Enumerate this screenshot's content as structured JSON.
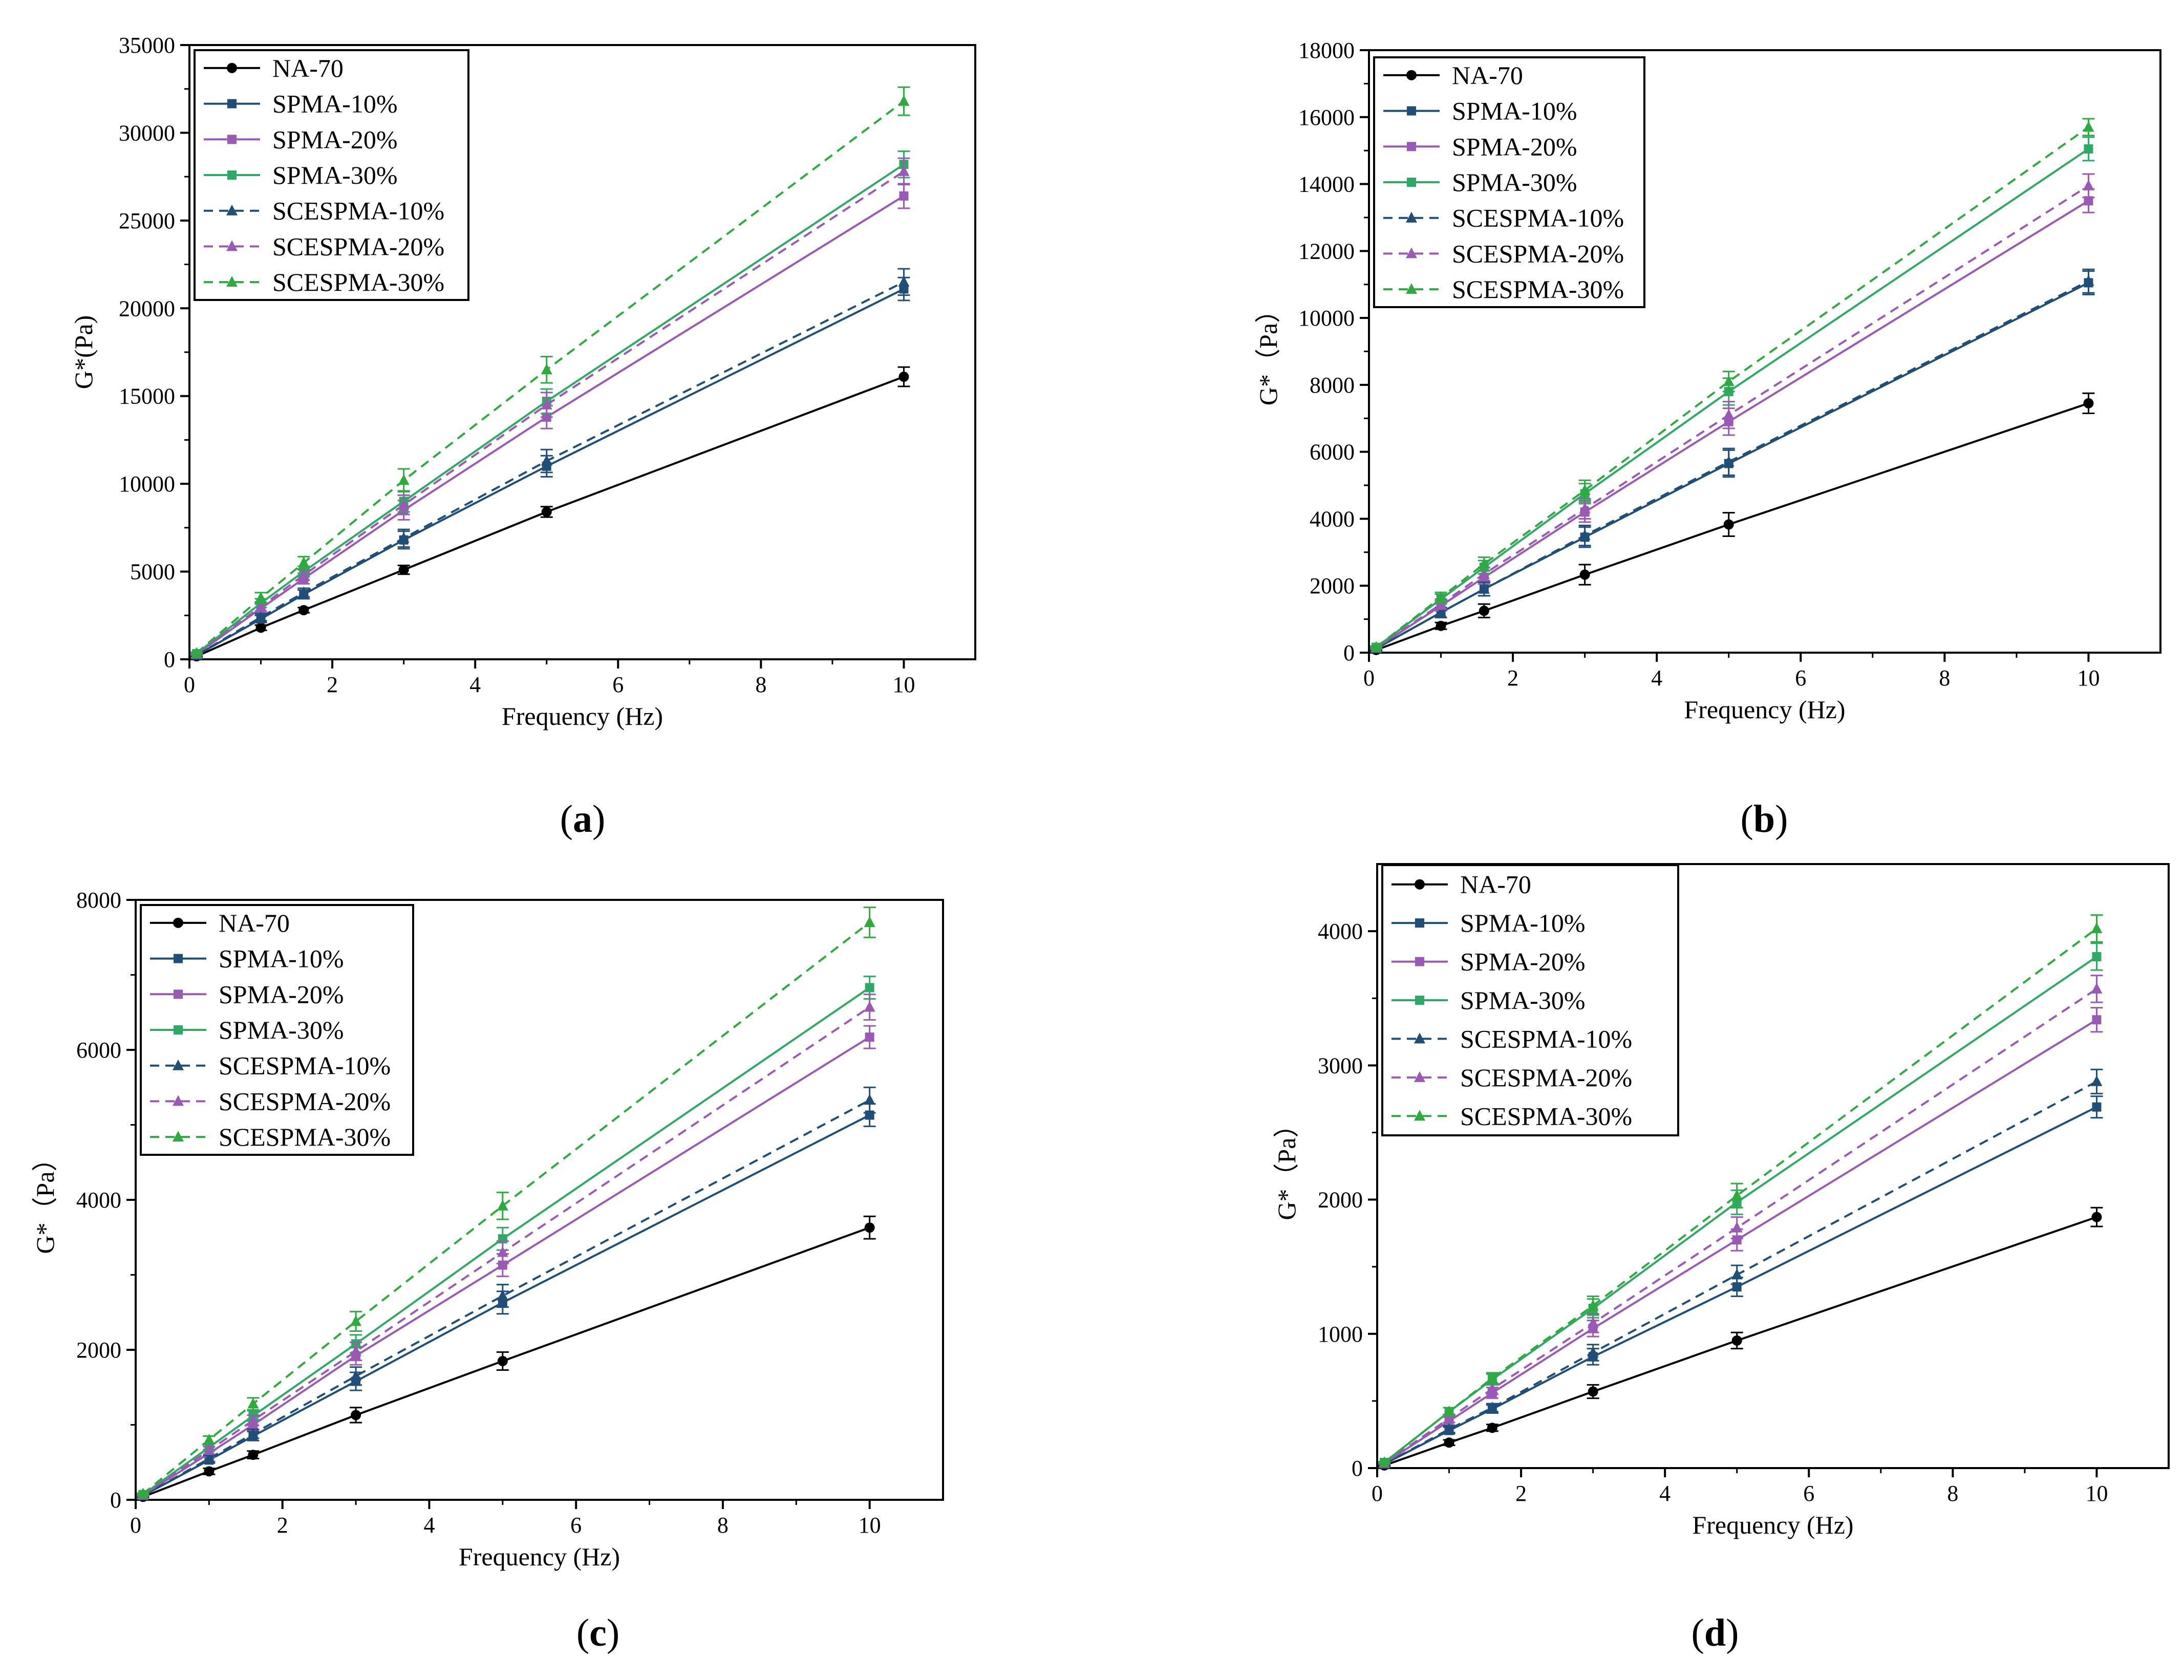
{
  "figure": {
    "captions": [
      "(a)",
      "(b)",
      "(c)",
      "(d)"
    ]
  },
  "chart_data": [
    {
      "panel": "a",
      "type": "line",
      "caption": "(a)",
      "xlabel": "Frequency (Hz)",
      "ylabel": "G*(Pa)",
      "xlim": [
        0,
        11
      ],
      "ylim": [
        0,
        35000
      ],
      "xticks": [
        0,
        2,
        4,
        6,
        8,
        10
      ],
      "yticks": [
        0,
        5000,
        10000,
        15000,
        20000,
        25000,
        30000,
        35000
      ],
      "legend_position": "top-left",
      "x": [
        0.1,
        1,
        1.6,
        3,
        5,
        10
      ],
      "series": [
        {
          "name": "NA-70",
          "color": "#000000",
          "dashed": false,
          "marker": "circle",
          "values": [
            170,
            1800,
            2800,
            5100,
            8400,
            16100
          ],
          "errors": [
            40,
            150,
            150,
            250,
            300,
            550
          ]
        },
        {
          "name": "SPMA-10%",
          "color": "#1f4e79",
          "dashed": false,
          "marker": "square",
          "values": [
            230,
            2300,
            3700,
            6800,
            11000,
            21100
          ],
          "errors": [
            40,
            200,
            250,
            500,
            600,
            650
          ]
        },
        {
          "name": "SPMA-20%",
          "color": "#9b59b6",
          "dashed": false,
          "marker": "square",
          "values": [
            290,
            2900,
            4600,
            8500,
            13800,
            26400
          ],
          "errors": [
            50,
            250,
            300,
            550,
            650,
            700
          ]
        },
        {
          "name": "SPMA-30%",
          "color": "#2eaa65",
          "dashed": false,
          "marker": "square",
          "values": [
            320,
            3200,
            5000,
            9000,
            14700,
            28200
          ],
          "errors": [
            50,
            250,
            300,
            600,
            700,
            750
          ]
        },
        {
          "name": "SCESPMA-10%",
          "color": "#1f4e79",
          "dashed": true,
          "marker": "triangle",
          "values": [
            235,
            2400,
            3800,
            6900,
            11300,
            21500
          ],
          "errors": [
            40,
            200,
            250,
            500,
            650,
            750
          ]
        },
        {
          "name": "SCESPMA-20%",
          "color": "#9b59b6",
          "dashed": true,
          "marker": "triangle",
          "values": [
            300,
            3000,
            4800,
            8800,
            14500,
            27800
          ],
          "errors": [
            50,
            250,
            300,
            550,
            700,
            750
          ]
        },
        {
          "name": "SCESPMA-30%",
          "color": "#2eaa3f",
          "dashed": true,
          "marker": "triangle",
          "values": [
            350,
            3500,
            5500,
            10200,
            16500,
            31800
          ],
          "errors": [
            60,
            300,
            350,
            650,
            750,
            800
          ]
        }
      ]
    },
    {
      "panel": "b",
      "type": "line",
      "caption": "(b)",
      "xlabel": "Frequency (Hz)",
      "ylabel": "G*（Pa）",
      "xlim": [
        0,
        11
      ],
      "ylim": [
        0,
        18000
      ],
      "xticks": [
        0,
        2,
        4,
        6,
        8,
        10
      ],
      "yticks": [
        0,
        2000,
        4000,
        6000,
        8000,
        10000,
        12000,
        14000,
        16000,
        18000
      ],
      "legend_position": "top-left",
      "x": [
        0.1,
        1,
        1.6,
        3,
        5,
        10
      ],
      "series": [
        {
          "name": "NA-70",
          "color": "#000000",
          "dashed": false,
          "marker": "circle",
          "values": [
            80,
            800,
            1250,
            2330,
            3830,
            7450
          ],
          "errors": [
            20,
            100,
            200,
            300,
            350,
            300
          ]
        },
        {
          "name": "SPMA-10%",
          "color": "#1f4e79",
          "dashed": false,
          "marker": "square",
          "values": [
            120,
            1200,
            1900,
            3450,
            5650,
            11050
          ],
          "errors": [
            30,
            150,
            200,
            300,
            400,
            350
          ]
        },
        {
          "name": "SPMA-20%",
          "color": "#9b59b6",
          "dashed": false,
          "marker": "square",
          "values": [
            140,
            1400,
            2250,
            4200,
            6900,
            13500
          ],
          "errors": [
            30,
            150,
            200,
            300,
            400,
            350
          ]
        },
        {
          "name": "SPMA-30%",
          "color": "#2eaa65",
          "dashed": false,
          "marker": "square",
          "values": [
            160,
            1600,
            2550,
            4750,
            7800,
            15050
          ],
          "errors": [
            30,
            150,
            200,
            300,
            400,
            350
          ]
        },
        {
          "name": "SCESPMA-10%",
          "color": "#1f4e79",
          "dashed": true,
          "marker": "triangle",
          "values": [
            120,
            1200,
            1900,
            3500,
            5700,
            11100
          ],
          "errors": [
            30,
            150,
            200,
            300,
            400,
            350
          ]
        },
        {
          "name": "SCESPMA-20%",
          "color": "#9b59b6",
          "dashed": true,
          "marker": "triangle",
          "values": [
            145,
            1450,
            2350,
            4300,
            7100,
            13950
          ],
          "errors": [
            30,
            150,
            200,
            300,
            400,
            350
          ]
        },
        {
          "name": "SCESPMA-30%",
          "color": "#2eaa3f",
          "dashed": true,
          "marker": "triangle",
          "values": [
            165,
            1650,
            2650,
            4850,
            8100,
            15700
          ],
          "errors": [
            30,
            150,
            200,
            300,
            300,
            250
          ]
        }
      ]
    },
    {
      "panel": "c",
      "type": "line",
      "caption": "(c)",
      "xlabel": "Frequency (Hz)",
      "ylabel": "G*（Pa）",
      "xlim": [
        0,
        11
      ],
      "ylim": [
        0,
        8000
      ],
      "xticks": [
        0,
        2,
        4,
        6,
        8,
        10
      ],
      "yticks": [
        0,
        2000,
        4000,
        6000,
        8000
      ],
      "legend_position": "top-left",
      "x": [
        0.1,
        1,
        1.6,
        3,
        5,
        10
      ],
      "series": [
        {
          "name": "NA-70",
          "color": "#000000",
          "dashed": false,
          "marker": "circle",
          "values": [
            40,
            380,
            600,
            1130,
            1850,
            3630
          ],
          "errors": [
            10,
            40,
            50,
            100,
            120,
            150
          ]
        },
        {
          "name": "SPMA-10%",
          "color": "#1f4e79",
          "dashed": false,
          "marker": "square",
          "values": [
            55,
            530,
            850,
            1580,
            2630,
            5130
          ],
          "errors": [
            10,
            40,
            60,
            120,
            150,
            150
          ]
        },
        {
          "name": "SPMA-20%",
          "color": "#9b59b6",
          "dashed": false,
          "marker": "square",
          "values": [
            65,
            620,
            1000,
            1920,
            3130,
            6170
          ],
          "errors": [
            10,
            50,
            70,
            120,
            150,
            150
          ]
        },
        {
          "name": "SPMA-30%",
          "color": "#2eaa65",
          "dashed": false,
          "marker": "square",
          "values": [
            70,
            700,
            1120,
            2080,
            3480,
            6830
          ],
          "errors": [
            10,
            50,
            70,
            120,
            150,
            150
          ]
        },
        {
          "name": "SCESPMA-10%",
          "color": "#1f4e79",
          "dashed": true,
          "marker": "triangle",
          "values": [
            55,
            550,
            880,
            1650,
            2720,
            5330
          ],
          "errors": [
            10,
            40,
            60,
            120,
            150,
            170
          ]
        },
        {
          "name": "SCESPMA-20%",
          "color": "#9b59b6",
          "dashed": true,
          "marker": "triangle",
          "values": [
            65,
            660,
            1060,
            1980,
            3300,
            6570
          ],
          "errors": [
            10,
            50,
            70,
            120,
            150,
            170
          ]
        },
        {
          "name": "SCESPMA-30%",
          "color": "#2eaa3f",
          "dashed": true,
          "marker": "triangle",
          "values": [
            80,
            800,
            1280,
            2380,
            3920,
            7700
          ],
          "errors": [
            10,
            50,
            80,
            130,
            180,
            200
          ]
        }
      ]
    },
    {
      "panel": "d",
      "type": "line",
      "caption": "(d)",
      "xlabel": "Frequency (Hz)",
      "ylabel": "G*（Pa）",
      "xlim": [
        0,
        11
      ],
      "ylim": [
        0,
        4500
      ],
      "xticks": [
        0,
        2,
        4,
        6,
        8,
        10
      ],
      "yticks": [
        0,
        1000,
        2000,
        3000,
        4000
      ],
      "legend_position": "top-left",
      "x": [
        0.1,
        1,
        1.6,
        3,
        5,
        10
      ],
      "series": [
        {
          "name": "NA-70",
          "color": "#000000",
          "dashed": false,
          "marker": "circle",
          "values": [
            20,
            190,
            300,
            570,
            950,
            1870
          ],
          "errors": [
            5,
            20,
            25,
            50,
            60,
            70
          ]
        },
        {
          "name": "SPMA-10%",
          "color": "#1f4e79",
          "dashed": false,
          "marker": "square",
          "values": [
            30,
            280,
            440,
            830,
            1350,
            2690
          ],
          "errors": [
            5,
            25,
            30,
            60,
            70,
            80
          ]
        },
        {
          "name": "SPMA-20%",
          "color": "#9b59b6",
          "dashed": false,
          "marker": "square",
          "values": [
            35,
            350,
            560,
            1040,
            1700,
            3340
          ],
          "errors": [
            5,
            30,
            40,
            60,
            80,
            90
          ]
        },
        {
          "name": "SPMA-30%",
          "color": "#2eaa65",
          "dashed": false,
          "marker": "square",
          "values": [
            42,
            420,
            660,
            1190,
            1980,
            3810
          ],
          "errors": [
            5,
            30,
            40,
            70,
            90,
            100
          ]
        },
        {
          "name": "SCESPMA-10%",
          "color": "#1f4e79",
          "dashed": true,
          "marker": "triangle",
          "values": [
            30,
            290,
            450,
            860,
            1440,
            2880
          ],
          "errors": [
            5,
            25,
            30,
            60,
            70,
            90
          ]
        },
        {
          "name": "SCESPMA-20%",
          "color": "#9b59b6",
          "dashed": true,
          "marker": "triangle",
          "values": [
            37,
            370,
            590,
            1080,
            1790,
            3570
          ],
          "errors": [
            5,
            30,
            40,
            70,
            80,
            100
          ]
        },
        {
          "name": "SCESPMA-30%",
          "color": "#2eaa3f",
          "dashed": true,
          "marker": "triangle",
          "values": [
            42,
            420,
            670,
            1210,
            2030,
            4020
          ],
          "errors": [
            5,
            30,
            40,
            70,
            90,
            100
          ]
        }
      ]
    }
  ]
}
